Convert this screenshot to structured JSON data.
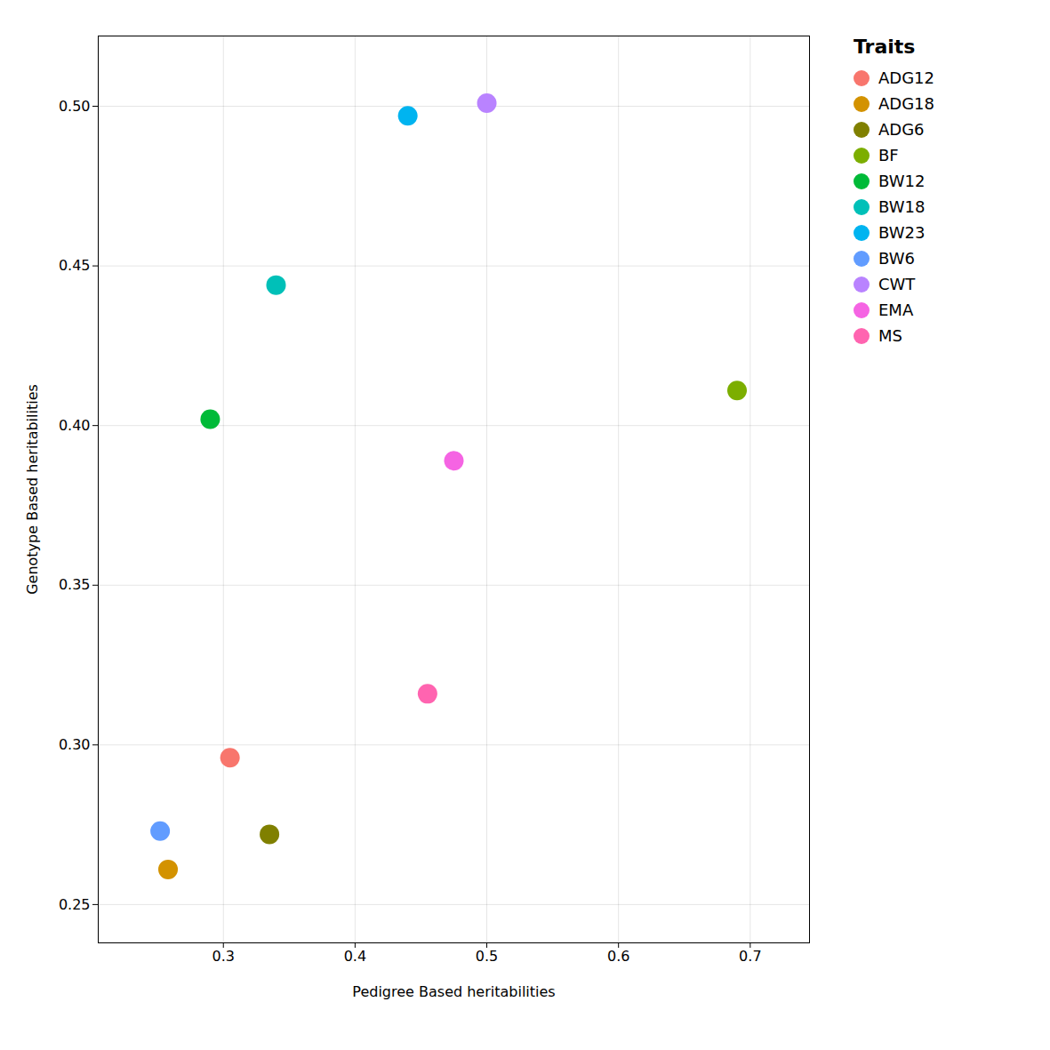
{
  "chart_data": {
    "type": "scatter",
    "xlabel": "Pedigree Based heritabilities",
    "ylabel": "Genotype Based heritabilities",
    "legend_title": "Traits",
    "legend": "right",
    "grid": true,
    "series": [
      {
        "name": "ADG12",
        "color": "#F8766D",
        "x": [
          0.305
        ],
        "values": [
          0.296
        ]
      },
      {
        "name": "ADG18",
        "color": "#D39200",
        "x": [
          0.258
        ],
        "values": [
          0.261
        ]
      },
      {
        "name": "ADG6",
        "color": "#808000",
        "x": [
          0.335
        ],
        "values": [
          0.272
        ]
      },
      {
        "name": "BF",
        "color": "#7CAE00",
        "x": [
          0.69
        ],
        "values": [
          0.411
        ]
      },
      {
        "name": "BW12",
        "color": "#00BA38",
        "x": [
          0.29
        ],
        "values": [
          0.402
        ]
      },
      {
        "name": "BW18",
        "color": "#00C0B8",
        "x": [
          0.34
        ],
        "values": [
          0.444
        ]
      },
      {
        "name": "BW23",
        "color": "#00B4F0",
        "x": [
          0.44
        ],
        "values": [
          0.497
        ]
      },
      {
        "name": "BW6",
        "color": "#619CFF",
        "x": [
          0.252
        ],
        "values": [
          0.273
        ]
      },
      {
        "name": "CWT",
        "color": "#B983FF",
        "x": [
          0.5
        ],
        "values": [
          0.501
        ]
      },
      {
        "name": "EMA",
        "color": "#F564E3",
        "x": [
          0.475
        ],
        "values": [
          0.389
        ]
      },
      {
        "name": "MS",
        "color": "#FF64B0",
        "x": [
          0.455
        ],
        "values": [
          0.316
        ]
      }
    ],
    "xlim": [
      0.205,
      0.745
    ],
    "ylim": [
      0.238,
      0.522
    ],
    "xticks": [
      0.3,
      0.4,
      0.5,
      0.6,
      0.7
    ],
    "yticks": [
      0.25,
      {
        "value": 0.3,
        "label": "0.30"
      },
      0.35,
      {
        "value": 0.4,
        "label": "0.40"
      },
      0.45,
      {
        "value": 0.5,
        "label": "0.50"
      }
    ]
  }
}
